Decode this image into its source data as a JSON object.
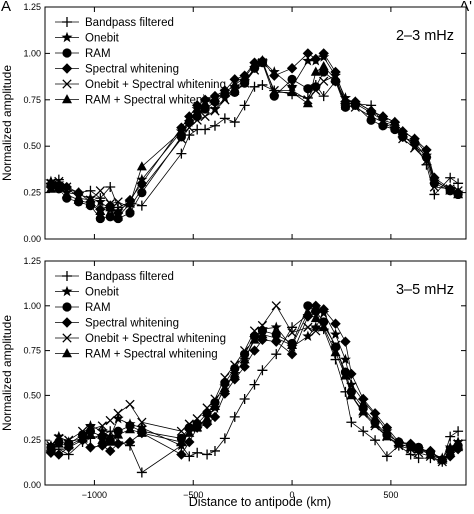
{
  "figure": {
    "corner_left": "A",
    "corner_right": "A'",
    "xlabel": "Distance to antipode (km)",
    "ylabel": "Normalized amplitude"
  },
  "legend_labels": [
    "Bandpass filtered",
    "Onebit",
    "RAM",
    "Spectral whitening",
    "Onebit + Spectral whitening",
    "RAM + Spectral whitening"
  ],
  "chart_data": [
    {
      "type": "line",
      "title": "2–3 mHz",
      "xlabel": "",
      "ylabel": "Normalized amplitude",
      "xlim": [
        -1250,
        880
      ],
      "ylim": [
        0,
        1.25
      ],
      "xticks": [
        -1000,
        -500,
        0,
        500
      ],
      "xticklabels": [
        "",
        "",
        "",
        ""
      ],
      "yticks": [
        0,
        0.25,
        0.5,
        0.75,
        1.0,
        1.25
      ],
      "yticklabels": [
        "0.00",
        "0.25",
        "0.50",
        "0.75",
        "1.00",
        "1.25"
      ],
      "legend_position": "top-left",
      "x": [
        -1220,
        -1180,
        -1140,
        -1080,
        -1020,
        -970,
        -920,
        -880,
        -820,
        -760,
        -560,
        -520,
        -480,
        -440,
        -390,
        -340,
        -290,
        -240,
        -190,
        -150,
        -90,
        0,
        80,
        120,
        160,
        220,
        270,
        320,
        400,
        460,
        520,
        560,
        620,
        680,
        720,
        800,
        840
      ],
      "series": [
        {
          "name": "Bandpass filtered",
          "marker": "plus",
          "values": [
            0.3,
            0.32,
            0.27,
            0.25,
            0.26,
            0.22,
            0.28,
            0.17,
            0.2,
            0.18,
            0.46,
            0.56,
            0.59,
            0.59,
            0.61,
            0.65,
            0.63,
            0.72,
            0.82,
            0.83,
            0.8,
            0.78,
            0.76,
            0.83,
            0.77,
            0.85,
            0.73,
            0.73,
            0.72,
            0.62,
            0.6,
            0.55,
            0.52,
            0.4,
            0.24,
            0.33,
            0.3
          ]
        },
        {
          "name": "Onebit",
          "marker": "star",
          "values": [
            0.31,
            0.3,
            0.25,
            0.24,
            0.22,
            0.2,
            0.16,
            0.15,
            0.2,
            0.32,
            0.58,
            0.63,
            0.7,
            0.71,
            0.7,
            0.76,
            0.82,
            0.85,
            0.92,
            0.96,
            0.9,
            0.82,
            0.96,
            0.96,
            0.98,
            0.88,
            0.76,
            0.73,
            0.68,
            0.64,
            0.62,
            0.56,
            0.5,
            0.45,
            0.31,
            0.27,
            0.25
          ]
        },
        {
          "name": "RAM",
          "marker": "circle",
          "values": [
            0.29,
            0.27,
            0.22,
            0.2,
            0.18,
            0.11,
            0.12,
            0.11,
            0.14,
            0.25,
            0.55,
            0.63,
            0.66,
            0.7,
            0.74,
            0.78,
            0.79,
            0.84,
            0.92,
            0.95,
            0.77,
            0.86,
            0.81,
            0.82,
            0.9,
            0.85,
            0.71,
            0.72,
            0.64,
            0.61,
            0.59,
            0.55,
            0.52,
            0.44,
            0.3,
            0.26,
            0.24
          ]
        },
        {
          "name": "Spectral whitening",
          "marker": "diamond",
          "values": [
            0.28,
            0.29,
            0.28,
            0.25,
            0.2,
            0.16,
            0.18,
            0.14,
            0.21,
            0.3,
            0.6,
            0.66,
            0.72,
            0.75,
            0.77,
            0.8,
            0.86,
            0.88,
            0.95,
            0.96,
            0.88,
            0.92,
            1.0,
            0.97,
            1.0,
            0.9,
            0.74,
            0.74,
            0.69,
            0.66,
            0.63,
            0.58,
            0.54,
            0.48,
            0.33,
            0.27,
            0.25
          ]
        },
        {
          "name": "Onebit + Spectral whitening",
          "marker": "cross",
          "values": [
            0.3,
            0.31,
            0.28,
            0.22,
            0.21,
            0.26,
            0.19,
            0.2,
            0.17,
            0.27,
            0.54,
            0.6,
            0.64,
            0.66,
            0.69,
            0.75,
            0.8,
            0.84,
            0.91,
            0.95,
            0.8,
            0.8,
            0.75,
            0.8,
            0.85,
            0.88,
            0.72,
            0.71,
            0.66,
            0.63,
            0.61,
            0.54,
            0.49,
            0.42,
            0.28,
            0.27,
            0.26
          ]
        },
        {
          "name": "RAM + Spectral whitening",
          "marker": "triangle",
          "values": [
            0.27,
            0.29,
            0.24,
            0.21,
            0.19,
            0.15,
            0.17,
            0.12,
            0.19,
            0.39,
            0.58,
            0.64,
            0.7,
            0.73,
            0.76,
            0.79,
            0.83,
            0.87,
            0.94,
            0.96,
            0.79,
            0.79,
            0.73,
            0.9,
            0.93,
            0.86,
            0.74,
            0.74,
            0.69,
            0.66,
            0.63,
            0.58,
            0.54,
            0.46,
            0.32,
            0.26,
            0.24
          ]
        }
      ]
    },
    {
      "type": "line",
      "title": "3–5 mHz",
      "xlabel": "Distance to antipode (km)",
      "ylabel": "Normalized amplitude",
      "xlim": [
        -1250,
        880
      ],
      "ylim": [
        0,
        1.25
      ],
      "xticks": [
        -1000,
        -500,
        0,
        500
      ],
      "xticklabels": [
        "−1000",
        "−500",
        "0",
        "500"
      ],
      "yticks": [
        0,
        0.25,
        0.5,
        0.75,
        1.0,
        1.25
      ],
      "yticklabels": [
        "0.00",
        "0.25",
        "0.50",
        "0.75",
        "1.00",
        "1.25"
      ],
      "legend_position": "top-left",
      "x": [
        -1220,
        -1180,
        -1130,
        -1060,
        -1020,
        -960,
        -920,
        -880,
        -820,
        -760,
        -560,
        -520,
        -480,
        -430,
        -390,
        -340,
        -290,
        -240,
        -190,
        -150,
        -80,
        0,
        80,
        120,
        160,
        220,
        270,
        300,
        360,
        420,
        480,
        540,
        600,
        640,
        700,
        760,
        800,
        840
      ],
      "series": [
        {
          "name": "Bandpass filtered",
          "marker": "plus",
          "values": [
            0.19,
            0.2,
            0.17,
            0.24,
            0.26,
            0.28,
            0.3,
            0.24,
            0.22,
            0.07,
            0.22,
            0.16,
            0.18,
            0.17,
            0.19,
            0.26,
            0.38,
            0.48,
            0.56,
            0.64,
            0.73,
            0.88,
            0.95,
            0.97,
            0.87,
            0.7,
            0.52,
            0.35,
            0.3,
            0.25,
            0.16,
            0.22,
            0.17,
            0.15,
            0.15,
            0.13,
            0.27,
            0.3
          ]
        },
        {
          "name": "Onebit",
          "marker": "star",
          "values": [
            0.22,
            0.27,
            0.24,
            0.26,
            0.33,
            0.3,
            0.27,
            0.37,
            0.34,
            0.32,
            0.22,
            0.3,
            0.32,
            0.38,
            0.43,
            0.55,
            0.62,
            0.7,
            0.82,
            0.87,
            0.88,
            0.77,
            0.83,
            0.88,
            0.96,
            0.84,
            0.7,
            0.56,
            0.47,
            0.39,
            0.3,
            0.23,
            0.21,
            0.2,
            0.18,
            0.15,
            0.21,
            0.24
          ]
        },
        {
          "name": "RAM",
          "marker": "circle",
          "values": [
            0.21,
            0.24,
            0.23,
            0.28,
            0.3,
            0.27,
            0.25,
            0.3,
            0.33,
            0.3,
            0.26,
            0.32,
            0.34,
            0.4,
            0.46,
            0.57,
            0.65,
            0.73,
            0.83,
            0.86,
            0.84,
            0.79,
            1.0,
            0.97,
            0.91,
            0.77,
            0.63,
            0.52,
            0.43,
            0.35,
            0.28,
            0.24,
            0.22,
            0.21,
            0.18,
            0.14,
            0.19,
            0.22
          ]
        },
        {
          "name": "Spectral whitening",
          "marker": "diamond",
          "values": [
            0.18,
            0.17,
            0.21,
            0.25,
            0.21,
            0.22,
            0.19,
            0.23,
            0.24,
            0.29,
            0.17,
            0.24,
            0.32,
            0.34,
            0.38,
            0.51,
            0.59,
            0.66,
            0.75,
            0.81,
            0.8,
            0.73,
            0.94,
            1.0,
            0.98,
            0.9,
            0.8,
            0.62,
            0.48,
            0.4,
            0.32,
            0.24,
            0.23,
            0.2,
            0.19,
            0.14,
            0.16,
            0.2
          ]
        },
        {
          "name": "Onebit + Spectral whitening",
          "marker": "cross",
          "values": [
            0.22,
            0.26,
            0.25,
            0.3,
            0.31,
            0.33,
            0.36,
            0.4,
            0.45,
            0.35,
            0.3,
            0.34,
            0.37,
            0.43,
            0.48,
            0.6,
            0.67,
            0.75,
            0.86,
            0.89,
            1.0,
            0.85,
            0.88,
            0.86,
            0.89,
            0.78,
            0.61,
            0.5,
            0.4,
            0.33,
            0.27,
            0.22,
            0.2,
            0.18,
            0.16,
            0.13,
            0.19,
            0.23
          ]
        },
        {
          "name": "RAM + Spectral whitening",
          "marker": "triangle",
          "values": [
            0.2,
            0.23,
            0.22,
            0.26,
            0.28,
            0.25,
            0.24,
            0.28,
            0.31,
            0.29,
            0.24,
            0.29,
            0.32,
            0.37,
            0.44,
            0.54,
            0.62,
            0.7,
            0.81,
            0.84,
            0.82,
            0.78,
            0.96,
            0.93,
            0.88,
            0.74,
            0.61,
            0.5,
            0.41,
            0.34,
            0.27,
            0.23,
            0.21,
            0.2,
            0.17,
            0.14,
            0.18,
            0.21
          ]
        }
      ]
    }
  ]
}
